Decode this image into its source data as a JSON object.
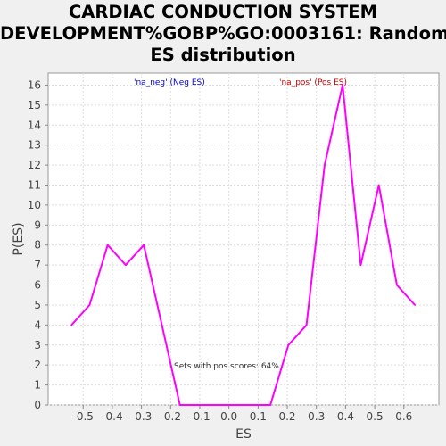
{
  "chart_data": {
    "type": "line",
    "title_lines": [
      "CARDIAC CONDUCTION SYSTEM",
      "DEVELOPMENT%GOBP%GO:0003161: Random",
      "ES distribution"
    ],
    "xlabel": "ES",
    "ylabel": "P(ES)",
    "xlim": [
      -0.62,
      0.72
    ],
    "ylim": [
      0,
      16.6
    ],
    "xticks": [
      "-0.5",
      "-0.4",
      "-0.3",
      "-0.2",
      "-0.1",
      "0.0",
      "0.1",
      "0.2",
      "0.3",
      "0.4",
      "0.5",
      "0.6"
    ],
    "yticks": [
      "0",
      "1",
      "2",
      "3",
      "4",
      "5",
      "6",
      "7",
      "8",
      "9",
      "10",
      "11",
      "12",
      "13",
      "14",
      "15",
      "16"
    ],
    "grid": true,
    "series": [
      {
        "color": "#ff00ff",
        "x": [
          -0.54,
          -0.478,
          -0.416,
          -0.354,
          -0.292,
          -0.23,
          -0.168,
          -0.106,
          -0.044,
          0.018,
          0.08,
          0.142,
          0.204,
          0.266,
          0.328,
          0.39,
          0.452,
          0.514,
          0.576,
          0.638
        ],
        "y": [
          4,
          5,
          8,
          7,
          8,
          4,
          0,
          0,
          0,
          0,
          0,
          0,
          3,
          4,
          12,
          16,
          7,
          11,
          6,
          5
        ]
      }
    ],
    "legend": [
      {
        "label": "'na_neg' (Neg ES)",
        "color": "#0000cc"
      },
      {
        "label": "'na_pos' (Pos ES)",
        "color": "#cc0000"
      }
    ],
    "annotation": "Sets with pos scores: 64%"
  }
}
